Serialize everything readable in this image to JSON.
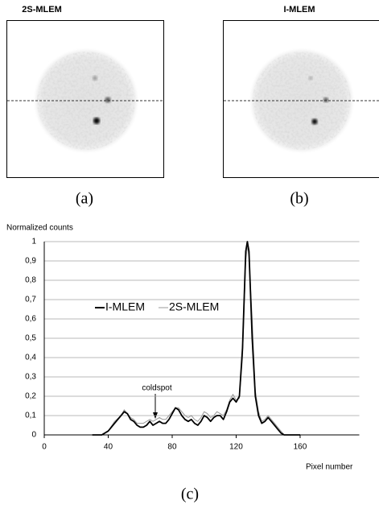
{
  "panels": [
    {
      "title": "2S-MLEM",
      "caption": "(a)"
    },
    {
      "title": "I-MLEM",
      "caption": "(b)"
    }
  ],
  "chart_data": {
    "type": "line",
    "caption": "(c)",
    "ylabel": "Normalized counts",
    "xlabel": "Pixel number",
    "x": [
      30,
      36,
      40,
      44,
      48,
      50,
      52,
      54,
      56,
      58,
      60,
      62,
      64,
      66,
      68,
      70,
      72,
      74,
      76,
      78,
      80,
      82,
      84,
      86,
      88,
      90,
      92,
      94,
      96,
      98,
      100,
      102,
      104,
      106,
      108,
      110,
      112,
      114,
      116,
      118,
      120,
      122,
      124,
      126,
      127,
      128,
      130,
      132,
      134,
      136,
      138,
      140,
      142,
      144,
      146,
      148,
      150,
      156,
      160
    ],
    "series": [
      {
        "name": "I-MLEM",
        "color": "#000000",
        "values": [
          0,
          0,
          0.02,
          0.06,
          0.1,
          0.12,
          0.11,
          0.08,
          0.07,
          0.05,
          0.04,
          0.04,
          0.05,
          0.07,
          0.05,
          0.06,
          0.07,
          0.06,
          0.06,
          0.08,
          0.11,
          0.14,
          0.13,
          0.1,
          0.08,
          0.07,
          0.08,
          0.06,
          0.05,
          0.07,
          0.1,
          0.09,
          0.07,
          0.09,
          0.1,
          0.1,
          0.08,
          0.12,
          0.17,
          0.19,
          0.17,
          0.2,
          0.45,
          0.95,
          1,
          0.95,
          0.5,
          0.2,
          0.1,
          0.06,
          0.07,
          0.09,
          0.07,
          0.05,
          0.03,
          0.01,
          0,
          0,
          0
        ]
      },
      {
        "name": "2S-MLEM",
        "color": "#999999",
        "values": [
          0,
          0,
          0.02,
          0.07,
          0.1,
          0.13,
          0.11,
          0.09,
          0.08,
          0.06,
          0.06,
          0.06,
          0.07,
          0.08,
          0.07,
          0.08,
          0.09,
          0.08,
          0.08,
          0.1,
          0.12,
          0.14,
          0.14,
          0.12,
          0.1,
          0.09,
          0.1,
          0.08,
          0.07,
          0.09,
          0.12,
          0.11,
          0.09,
          0.1,
          0.12,
          0.11,
          0.1,
          0.13,
          0.18,
          0.21,
          0.18,
          0.19,
          0.4,
          0.9,
          0.98,
          0.92,
          0.6,
          0.23,
          0.12,
          0.07,
          0.08,
          0.1,
          0.08,
          0.06,
          0.04,
          0.02,
          0,
          0,
          0
        ]
      }
    ],
    "xlim": [
      0,
      197
    ],
    "xticks": [
      0,
      40,
      80,
      120,
      160
    ],
    "ylim": [
      0,
      1
    ],
    "yticks": [
      0,
      {
        "value": 0.1,
        "label": "0,1"
      },
      {
        "value": 0.2,
        "label": "0,2"
      },
      {
        "value": 0.3,
        "label": "0,3"
      },
      {
        "value": 0.4,
        "label": "0,4"
      },
      {
        "value": 0.5,
        "label": "0,5"
      },
      {
        "value": 0.6,
        "label": "0,6"
      },
      {
        "value": 0.7,
        "label": "0,7"
      },
      {
        "value": 0.8,
        "label": "0,8"
      },
      {
        "value": 0.9,
        "label": "0,9"
      },
      1
    ],
    "grid": true,
    "legend": "center-left",
    "annotations": [
      "coldspot"
    ]
  }
}
